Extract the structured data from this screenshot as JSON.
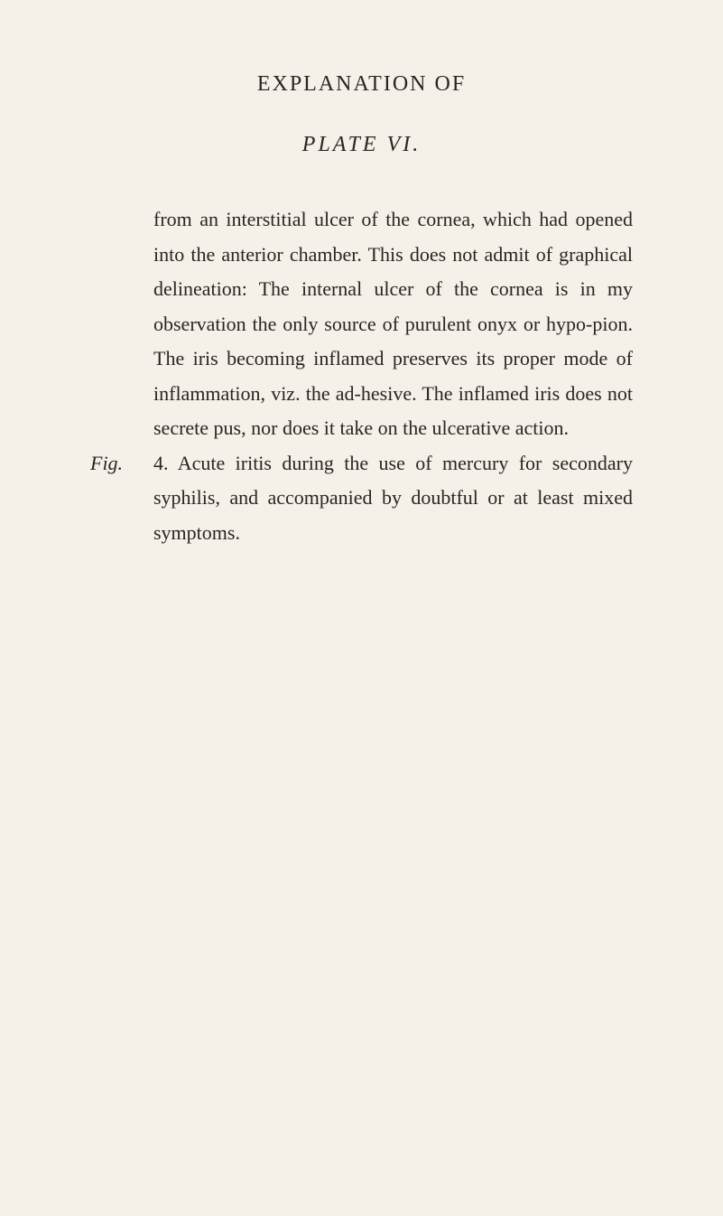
{
  "header": "EXPLANATION OF",
  "plateTitle": "PLATE VI.",
  "paragraph1": "from an interstitial ulcer of the cornea, which had opened into the anterior chamber. This does not admit of graphical delineation: The internal ulcer of the cornea is in my observation the only source of purulent onyx or hypo-pion. The iris becoming inflamed preserves its proper mode of inflammation, viz. the ad-hesive. The inflamed iris does not secrete pus, nor does it take on the ulcerative action.",
  "figLabel": "Fig.",
  "figNumber": "4.",
  "paragraph2": "Acute iritis during the use of mercury for secondary syphilis, and accompanied by doubtful or at least mixed symptoms."
}
